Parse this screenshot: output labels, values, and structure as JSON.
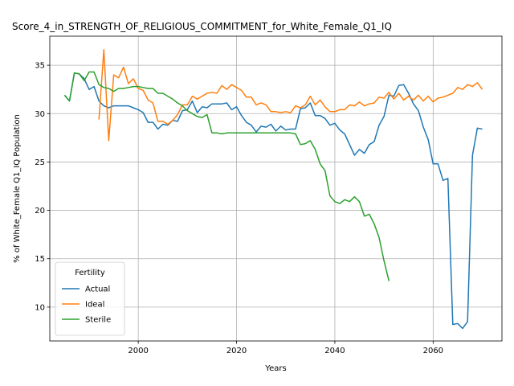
{
  "chart_data": {
    "type": "line",
    "title": "Score_4_in_STRENGTH_OF_RELIGIOUS_COMMITMENT_for_White_Female_Q1_IQ",
    "xlabel": "Years",
    "ylabel": "% of White_Female Q1_IQ Population",
    "xlim": [
      1982,
      2074
    ],
    "ylim": [
      6.5,
      38
    ],
    "xticks": [
      2000,
      2020,
      2040,
      2060
    ],
    "yticks": [
      10,
      15,
      20,
      25,
      30,
      35
    ],
    "grid": true,
    "legend": {
      "title": "Fertility",
      "placement": "lower-left"
    },
    "series": [
      {
        "name": "Actual",
        "color": "#1f77b4",
        "x": [
          1985,
          1986,
          1987,
          1988,
          1989,
          1990,
          1991,
          1992,
          1993,
          1994,
          1995,
          1996,
          1997,
          1998,
          1999,
          2000,
          2001,
          2002,
          2003,
          2004,
          2005,
          2006,
          2007,
          2008,
          2009,
          2010,
          2011,
          2012,
          2013,
          2014,
          2015,
          2016,
          2017,
          2018,
          2019,
          2020,
          2021,
          2022,
          2023,
          2024,
          2025,
          2026,
          2027,
          2028,
          2029,
          2030,
          2031,
          2032,
          2033,
          2034,
          2035,
          2036,
          2037,
          2038,
          2039,
          2040,
          2041,
          2042,
          2043,
          2044,
          2045,
          2046,
          2047,
          2048,
          2049,
          2050,
          2051,
          2052,
          2053,
          2054,
          2055,
          2056,
          2057,
          2058,
          2059,
          2060,
          2061,
          2062,
          2063,
          2064,
          2065,
          2066,
          2067,
          2068,
          2069,
          2070
        ],
        "values": [
          31.9,
          31.3,
          34.2,
          34.1,
          33.6,
          32.5,
          32.8,
          31.3,
          30.8,
          30.6,
          30.8,
          30.8,
          30.8,
          30.8,
          30.6,
          30.4,
          30.1,
          29.1,
          29.1,
          28.4,
          28.9,
          28.8,
          29.3,
          29.2,
          30.3,
          30.4,
          31.3,
          30.1,
          30.7,
          30.6,
          31.0,
          31.0,
          31.0,
          31.1,
          30.4,
          30.7,
          29.8,
          29.1,
          28.8,
          28.1,
          28.7,
          28.6,
          28.9,
          28.2,
          28.7,
          28.3,
          28.4,
          28.4,
          30.5,
          30.6,
          31.1,
          29.8,
          29.8,
          29.5,
          28.8,
          29.0,
          28.3,
          27.9,
          26.8,
          25.7,
          26.3,
          25.9,
          26.8,
          27.1,
          28.8,
          29.7,
          31.9,
          31.8,
          32.9,
          33.0,
          32.1,
          31.0,
          30.3,
          28.6,
          27.3,
          24.8,
          24.8,
          23.1,
          23.3,
          8.2,
          8.3,
          7.8,
          8.5,
          25.7,
          28.5,
          28.4
        ]
      },
      {
        "name": "Ideal",
        "color": "#ff7f0e",
        "x": [
          1992,
          1993,
          1994,
          1995,
          1996,
          1997,
          1998,
          1999,
          2000,
          2001,
          2002,
          2003,
          2004,
          2005,
          2006,
          2007,
          2008,
          2009,
          2010,
          2011,
          2012,
          2013,
          2014,
          2015,
          2016,
          2017,
          2018,
          2019,
          2020,
          2021,
          2022,
          2023,
          2024,
          2025,
          2026,
          2027,
          2028,
          2029,
          2030,
          2031,
          2032,
          2033,
          2034,
          2035,
          2036,
          2037,
          2038,
          2039,
          2040,
          2041,
          2042,
          2043,
          2044,
          2045,
          2046,
          2047,
          2048,
          2049,
          2050,
          2051,
          2052,
          2053,
          2054,
          2055,
          2056,
          2057,
          2058,
          2059,
          2060,
          2061,
          2062,
          2063,
          2064,
          2065,
          2066,
          2067,
          2068,
          2069,
          2070
        ],
        "values": [
          29.4,
          36.6,
          27.2,
          34.0,
          33.7,
          34.8,
          33.1,
          33.6,
          32.6,
          32.4,
          31.4,
          31.1,
          29.2,
          29.2,
          28.9,
          29.3,
          29.9,
          30.9,
          30.9,
          31.8,
          31.5,
          31.8,
          32.1,
          32.2,
          32.1,
          32.9,
          32.5,
          33.0,
          32.7,
          32.4,
          31.7,
          31.7,
          30.9,
          31.1,
          30.9,
          30.2,
          30.2,
          30.1,
          30.2,
          30.1,
          30.8,
          30.6,
          30.9,
          31.8,
          30.9,
          31.4,
          30.7,
          30.2,
          30.2,
          30.4,
          30.4,
          30.9,
          30.8,
          31.2,
          30.8,
          31.0,
          31.1,
          31.7,
          31.6,
          32.2,
          31.5,
          32.1,
          31.4,
          31.8,
          31.4,
          31.9,
          31.3,
          31.8,
          31.2,
          31.6,
          31.7,
          31.9,
          32.1,
          32.7,
          32.5,
          33.0,
          32.8,
          33.2,
          32.5
        ]
      },
      {
        "name": "Sterile",
        "color": "#2ca02c",
        "x": [
          1985,
          1986,
          1987,
          1988,
          1989,
          1990,
          1991,
          1992,
          1993,
          1994,
          1995,
          1996,
          1997,
          1998,
          1999,
          2000,
          2001,
          2002,
          2003,
          2004,
          2005,
          2006,
          2007,
          2008,
          2009,
          2010,
          2011,
          2012,
          2013,
          2014,
          2015,
          2016,
          2017,
          2018,
          2019,
          2020,
          2021,
          2022,
          2023,
          2024,
          2025,
          2026,
          2027,
          2028,
          2029,
          2030,
          2031,
          2032,
          2033,
          2034,
          2035,
          2036,
          2037,
          2038,
          2039,
          2040,
          2041,
          2042,
          2043,
          2044,
          2045,
          2046,
          2047,
          2048,
          2049,
          2050,
          2051
        ],
        "values": [
          31.9,
          31.3,
          34.2,
          34.1,
          33.4,
          34.3,
          34.3,
          33.0,
          32.7,
          32.6,
          32.3,
          32.6,
          32.6,
          32.7,
          32.8,
          32.8,
          32.7,
          32.6,
          32.6,
          32.1,
          32.1,
          31.8,
          31.5,
          31.1,
          30.8,
          30.3,
          30.0,
          29.7,
          29.6,
          29.9,
          28.0,
          28.0,
          27.9,
          28.0,
          28.0,
          28.0,
          28.0,
          28.0,
          28.0,
          28.0,
          28.0,
          28.0,
          28.0,
          28.0,
          28.0,
          28.0,
          28.0,
          27.9,
          26.8,
          26.9,
          27.2,
          26.3,
          24.8,
          24.1,
          21.5,
          20.9,
          20.7,
          21.1,
          20.9,
          21.4,
          20.9,
          19.4,
          19.6,
          18.6,
          17.2,
          14.8,
          12.7
        ]
      }
    ]
  }
}
